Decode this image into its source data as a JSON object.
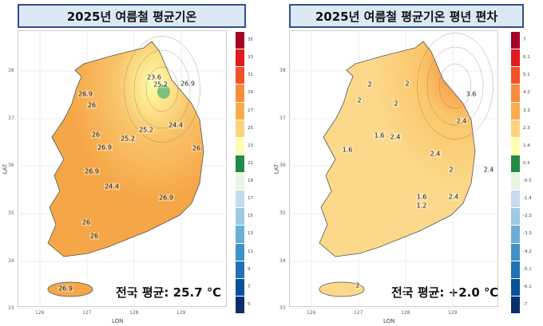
{
  "left": {
    "title": "2025년 여름철 평균기온",
    "avg": "전국 평균: 25.7 ℃",
    "colorbar": {
      "labels": [
        "35",
        "33",
        "31",
        "29",
        "27",
        "25",
        "23",
        "21",
        "19",
        "17",
        "15",
        "13",
        "11",
        "9",
        "7",
        "5"
      ],
      "colors": [
        "#a50026",
        "#e31a1c",
        "#f4502a",
        "#f88d3c",
        "#fbac4a",
        "#fdd47c",
        "#ffffb0",
        "#238b45",
        "#e8f5e0",
        "#c6dbef",
        "#9ecae1",
        "#6baed6",
        "#4292c6",
        "#2171b5",
        "#08519c",
        "#08306b"
      ]
    },
    "contour_labels": [
      "23.6",
      "25.2",
      "26.9",
      "26.9",
      "26",
      "24.4",
      "25.2",
      "26",
      "25.2",
      "26.9",
      "26",
      "26.9",
      "24.4",
      "26.9",
      "26",
      "26",
      "26.9"
    ]
  },
  "right": {
    "title": "2025년 여름철 평균기온 평년 편차",
    "avg": "전국 평균: +2.0 ℃",
    "colorbar": {
      "labels": [
        "7",
        "6.1",
        "5.1",
        "4.2",
        "3.3",
        "2.3",
        "1.4",
        "0.5",
        "-0.5",
        "-1.4",
        "-2.3",
        "-3.3",
        "-4.2",
        "-5.1",
        "-6.1",
        "-7"
      ],
      "colors": [
        "#a50026",
        "#e31a1c",
        "#f4502a",
        "#f88d3c",
        "#fbac4a",
        "#fdd47c",
        "#ffffb0",
        "#238b45",
        "#e8f5e0",
        "#c6dbef",
        "#9ecae1",
        "#6baed6",
        "#4292c6",
        "#2171b5",
        "#08519c",
        "#08306b"
      ]
    },
    "contour_labels": [
      "2",
      "2",
      "3.6",
      "2",
      "2",
      "2.4",
      "1.6",
      "2.4",
      "1.6",
      "2.4",
      "2",
      "2.4",
      "1.6",
      "1.2",
      "2.4",
      "2"
    ]
  },
  "axes": {
    "xlabel": "LON",
    "ylabel": "LAT",
    "lon_ticks": [
      "126",
      "127",
      "128",
      "129"
    ],
    "lat_ticks": [
      "38",
      "37",
      "36",
      "35",
      "34",
      "33"
    ]
  }
}
